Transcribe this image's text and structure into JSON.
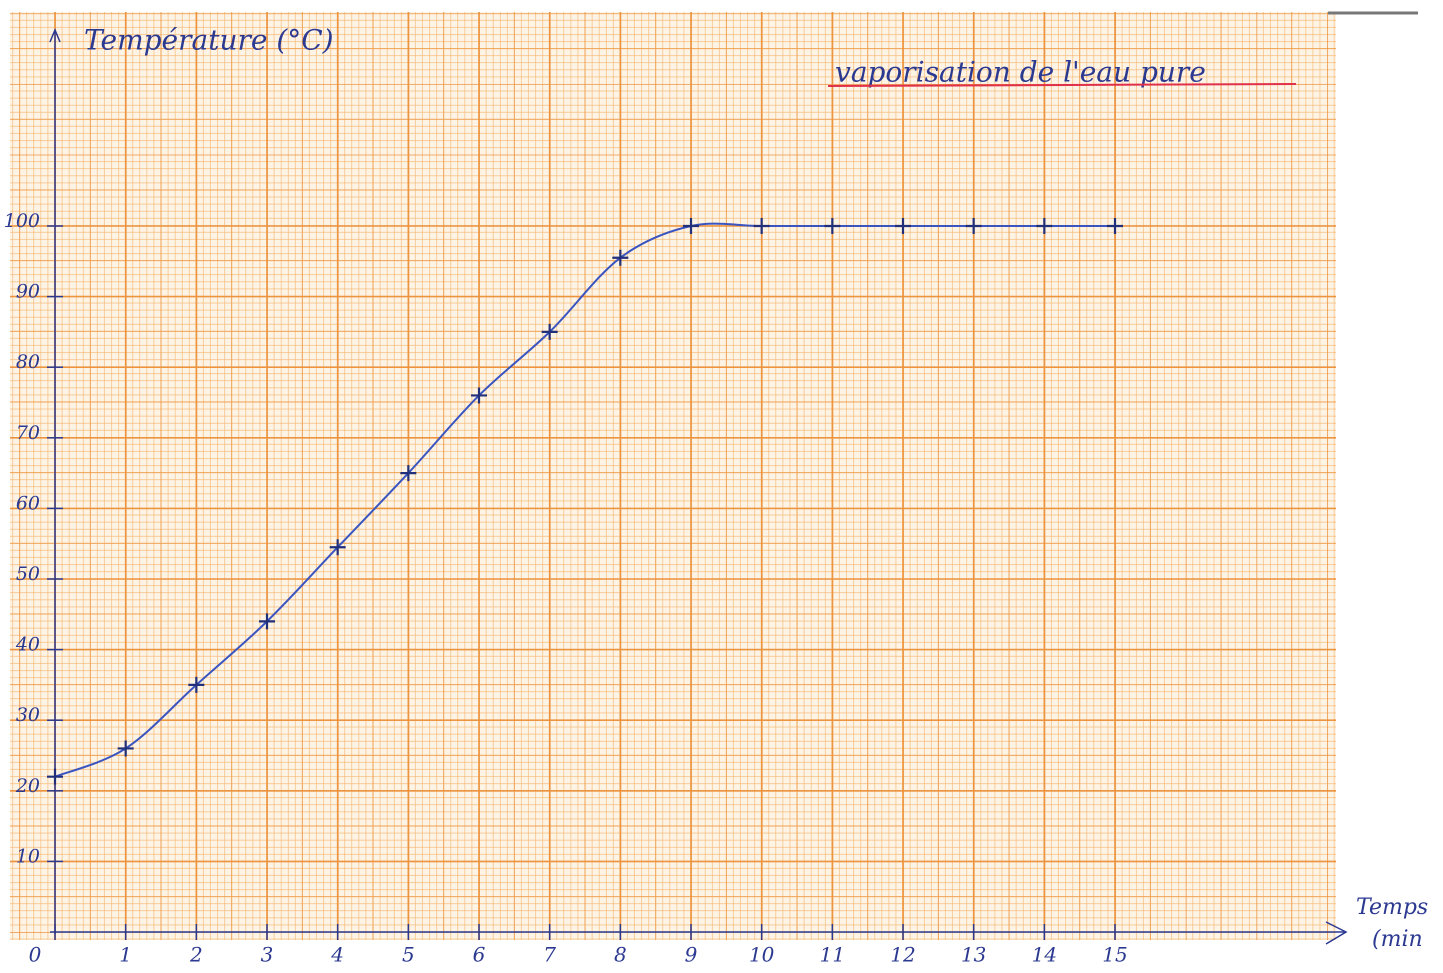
{
  "chart_data": {
    "type": "line",
    "title": "vaporisation de l'eau pure",
    "ylabel": "Température (°C)",
    "xlabel": [
      "Temps",
      "(min"
    ],
    "x": [
      0,
      1,
      2,
      3,
      4,
      5,
      6,
      7,
      8,
      9,
      10,
      11,
      12,
      13,
      14,
      15
    ],
    "series": [
      {
        "color": "#3b55c0",
        "values": [
          22,
          26,
          35,
          44,
          54.5,
          65,
          76,
          85,
          95.5,
          100,
          100,
          100,
          100,
          100,
          100,
          100
        ]
      }
    ],
    "xlim": [
      0,
      18
    ],
    "ylim": [
      0,
      125
    ],
    "xticks": [
      0,
      1,
      2,
      3,
      4,
      5,
      6,
      7,
      8,
      9,
      10,
      11,
      12,
      13,
      14,
      15
    ],
    "yticks": [
      10,
      20,
      30,
      40,
      50,
      60,
      70,
      80,
      90,
      100
    ],
    "grid": true,
    "markers": "plus"
  }
}
